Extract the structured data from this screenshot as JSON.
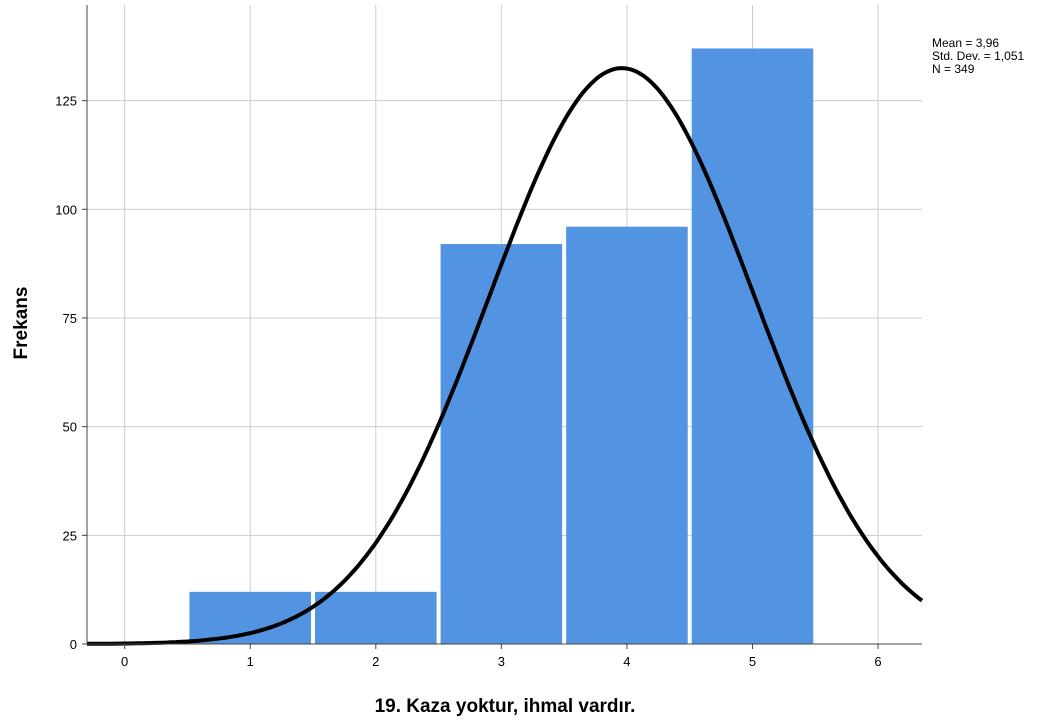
{
  "chart_data": {
    "type": "bar",
    "title": "",
    "xlabel": "19. Kaza yoktur, ihmal vardır.",
    "ylabel": "Frekans",
    "x_ticks": [
      0,
      1,
      2,
      3,
      4,
      5,
      6
    ],
    "y_ticks": [
      0,
      25,
      50,
      75,
      100,
      125
    ],
    "xlim": [
      -0.3,
      6.35
    ],
    "ylim": [
      0,
      147
    ],
    "grid": true,
    "bar_color": "#5294e2",
    "bins": [
      {
        "x": 1,
        "value": 12
      },
      {
        "x": 2,
        "value": 12
      },
      {
        "x": 3,
        "value": 92
      },
      {
        "x": 4,
        "value": 96
      },
      {
        "x": 5,
        "value": 137
      }
    ],
    "normal_curve": {
      "mean": 3.96,
      "std_dev": 1.051,
      "n": 349,
      "bin_width": 1,
      "color": "#000000"
    },
    "stats": [
      "Mean = 3,96",
      "Std. Dev. = 1,051",
      "N = 349"
    ]
  }
}
